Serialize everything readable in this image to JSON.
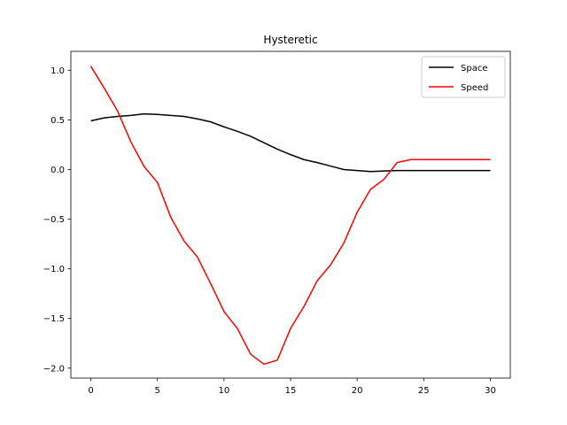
{
  "chart_data": {
    "type": "line",
    "title": "Hysteretic",
    "xlabel": "",
    "ylabel": "",
    "xlim": [
      -1.5,
      31.5
    ],
    "ylim": [
      -2.1,
      1.19
    ],
    "xticks": [
      0,
      5,
      10,
      15,
      20,
      25,
      30
    ],
    "xtick_labels": [
      "0",
      "5",
      "10",
      "15",
      "20",
      "25",
      "30"
    ],
    "yticks": [
      1.0,
      0.5,
      0.0,
      -0.5,
      -1.0,
      -1.5,
      -2.0
    ],
    "ytick_labels": [
      "1.0",
      "0.5",
      "0.0",
      "−0.5",
      "−1.0",
      "−1.5",
      "−2.0"
    ],
    "grid": false,
    "legend_position": "upper right",
    "series": [
      {
        "name": "Space",
        "color": "#000000",
        "x": [
          0,
          1,
          2,
          3,
          4,
          5,
          6,
          7,
          8,
          9,
          10,
          11,
          12,
          13,
          14,
          15,
          16,
          17,
          18,
          19,
          20,
          21,
          22,
          23,
          24,
          25,
          26,
          27,
          28,
          29,
          30
        ],
        "y": [
          0.49,
          0.52,
          0.535,
          0.545,
          0.56,
          0.555,
          0.545,
          0.535,
          0.51,
          0.48,
          0.43,
          0.385,
          0.335,
          0.27,
          0.205,
          0.15,
          0.1,
          0.07,
          0.035,
          0.0,
          -0.01,
          -0.02,
          -0.015,
          -0.01,
          -0.01,
          -0.01,
          -0.01,
          -0.01,
          -0.01,
          -0.01,
          -0.01
        ]
      },
      {
        "name": "Speed",
        "color": "#ff0000",
        "x": [
          0,
          1,
          2,
          3,
          4,
          5,
          6,
          7,
          8,
          9,
          10,
          11,
          12,
          13,
          14,
          15,
          16,
          17,
          18,
          19,
          20,
          21,
          22,
          23,
          24,
          25,
          26,
          27,
          28,
          29,
          30
        ],
        "y": [
          1.04,
          0.82,
          0.59,
          0.28,
          0.03,
          -0.13,
          -0.48,
          -0.72,
          -0.88,
          -1.15,
          -1.43,
          -1.6,
          -1.86,
          -1.96,
          -1.92,
          -1.6,
          -1.38,
          -1.12,
          -0.96,
          -0.74,
          -0.43,
          -0.2,
          -0.1,
          0.07,
          0.1,
          0.1,
          0.1,
          0.1,
          0.1,
          0.1,
          0.1
        ]
      }
    ]
  }
}
